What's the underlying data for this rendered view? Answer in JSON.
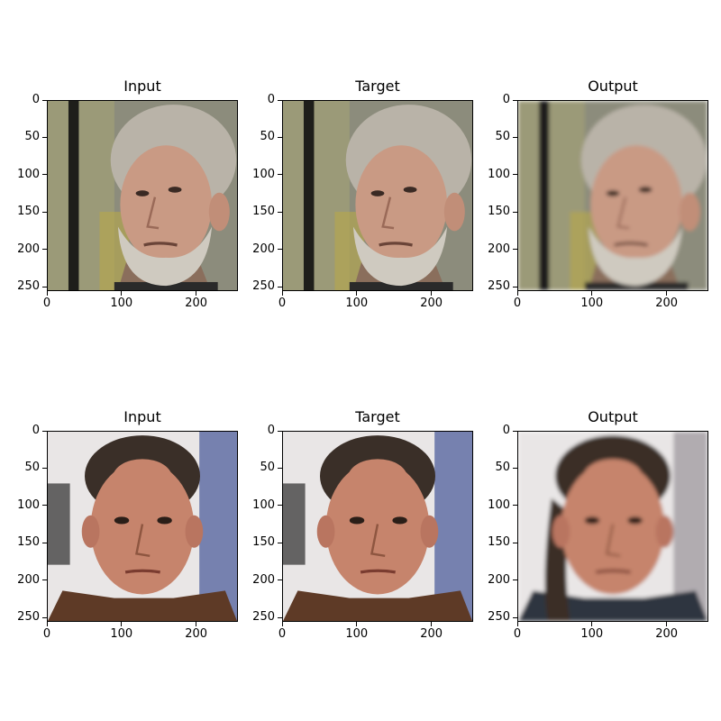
{
  "figure": {
    "rows": [
      {
        "panels": [
          {
            "title": "Input",
            "image": "older-man-grey-hair-beard-face"
          },
          {
            "title": "Target",
            "image": "older-man-grey-hair-beard-face"
          },
          {
            "title": "Output",
            "image": "older-man-grey-hair-beard-face-blurred"
          }
        ]
      },
      {
        "panels": [
          {
            "title": "Input",
            "image": "man-receding-hairline-face"
          },
          {
            "title": "Target",
            "image": "man-receding-hairline-face"
          },
          {
            "title": "Output",
            "image": "man-long-hair-face-blurred"
          }
        ]
      }
    ],
    "y_ticks": [
      "0",
      "50",
      "100",
      "150",
      "200",
      "250"
    ],
    "x_ticks": [
      "0",
      "100",
      "200"
    ],
    "y_tick_values": [
      0,
      50,
      100,
      150,
      200,
      250
    ],
    "x_tick_values": [
      0,
      100,
      200
    ],
    "image_size": 256,
    "colors": {
      "row1_bg_left": "#9b9a78",
      "row1_bg_right": "#8c8c7c",
      "row1_skin": "#c99a84",
      "row1_hair": "#b9b3a8",
      "row1_beard": "#cfcac0",
      "row2_bg": "#e9e6e6",
      "row2_skin": "#c6846c",
      "row2_hair": "#3a2f28",
      "row2_jacket": "#5e3a26"
    }
  }
}
